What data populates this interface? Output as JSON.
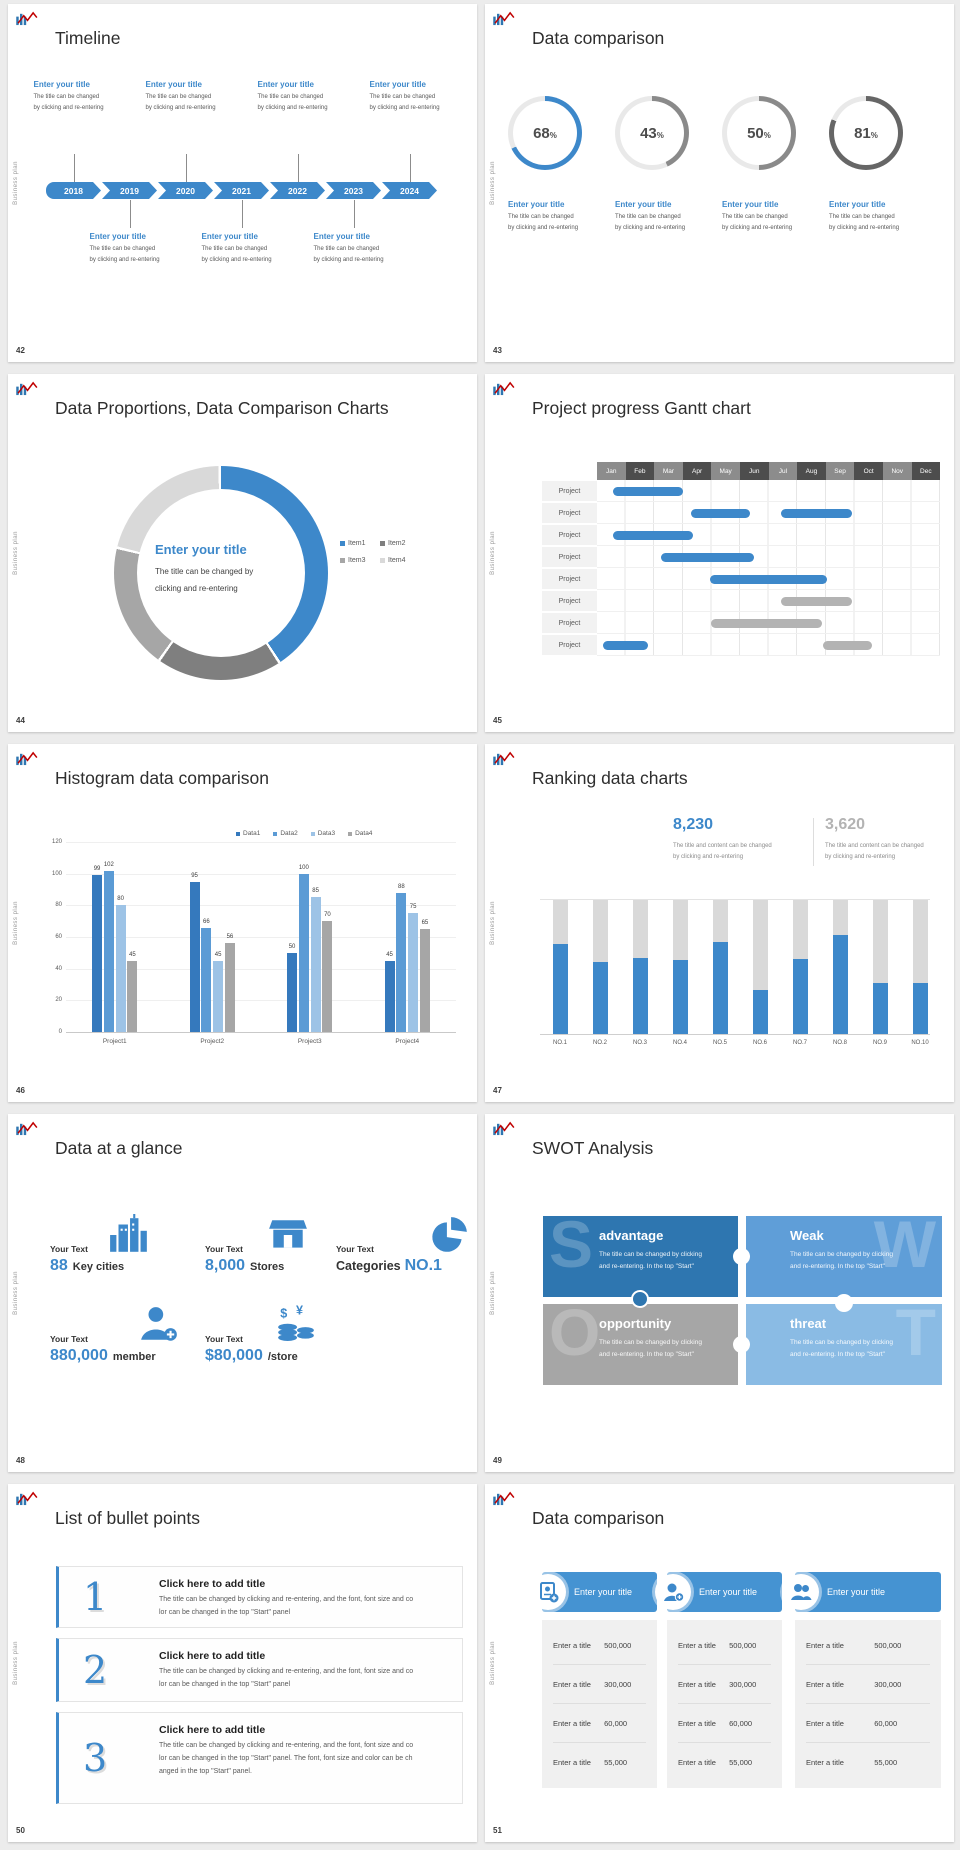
{
  "page": {
    "background": "#ececec",
    "accent": "#3d88ca"
  },
  "branding": {
    "vertical_label": "Business plan",
    "logo": "business-plan-logo"
  },
  "slides": {
    "timeline": {
      "page_number": "42",
      "title": "Timeline",
      "years": [
        "2018",
        "2019",
        "2020",
        "2021",
        "2022",
        "2023",
        "2024"
      ],
      "label": {
        "title": "Enter your title",
        "lines": [
          "The title can be changed",
          "by clicking and re-entering"
        ]
      },
      "top_slots": [
        0,
        2,
        4,
        6
      ],
      "bottom_slots": [
        1,
        3,
        5
      ]
    },
    "donut_comparison": {
      "page_number": "43",
      "title": "Data comparison",
      "label": {
        "title": "Enter your title",
        "lines": [
          "The title can be changed",
          "by clicking and re-entering"
        ]
      }
    },
    "proportions": {
      "page_number": "44",
      "title": "Data Proportions, Data Comparison Charts",
      "center": {
        "title": "Enter your title",
        "lines": [
          "The title can be changed by",
          "clicking and re-entering"
        ]
      }
    },
    "gantt": {
      "page_number": "45",
      "title": "Project progress Gantt chart"
    },
    "histogram": {
      "page_number": "46",
      "title": "Histogram data comparison"
    },
    "ranking": {
      "page_number": "47",
      "title": "Ranking data charts",
      "stats": [
        {
          "value": "8,230",
          "color": "#3d88ca",
          "lines": [
            "The title and content can be changed",
            "by clicking and re-entering"
          ]
        },
        {
          "value": "3,620",
          "color": "#b3b3b3",
          "lines": [
            "The title and content can be changed",
            "by clicking and re-entering"
          ]
        }
      ]
    },
    "glance": {
      "page_number": "48",
      "title": "Data at a glance",
      "items": [
        {
          "label": "Your Text",
          "value": "88",
          "suffix": "Key cities",
          "icon": "city-buildings-icon"
        },
        {
          "label": "Your Text",
          "value": "8,000",
          "suffix": "Stores",
          "icon": "store-icon"
        },
        {
          "label": "Your Text",
          "prefix": "Categories",
          "value": "NO.1",
          "icon": "pie-chart-icon"
        },
        {
          "label": "Your Text",
          "value": "880,000",
          "suffix": "member",
          "icon": "member-add-icon"
        },
        {
          "label": "Your Text",
          "value": "$80,000",
          "suffix": "/store",
          "icon": "coins-icon"
        }
      ]
    },
    "swot": {
      "page_number": "49",
      "title": "SWOT Analysis",
      "tiles": [
        {
          "letter": "S",
          "heading": "advantage",
          "color": "#2e76b0",
          "lines": [
            "The title can be changed by clicking",
            "and re-entering. In the top \"Start\""
          ]
        },
        {
          "letter": "W",
          "heading": "Weak",
          "color": "#5f9ed8",
          "lines": [
            "The title can be changed by clicking",
            "and re-entering. In the top \"Start\""
          ]
        },
        {
          "letter": "O",
          "heading": "opportunity",
          "color": "#a6a6a6",
          "lines": [
            "The title can be changed by clicking",
            "and re-entering. In the top \"Start\""
          ]
        },
        {
          "letter": "T",
          "heading": "threat",
          "color": "#8abbe4",
          "lines": [
            "The title can be changed by clicking",
            "and re-entering. In the top \"Start\""
          ]
        }
      ]
    },
    "bullets": {
      "page_number": "50",
      "title": "List of bullet points",
      "items": [
        {
          "number": "1",
          "heading": "Click here to add title",
          "lines": [
            "The title can be changed by clicking and re-entering, and the font, font size and co",
            "lor can be changed in the top \"Start\" panel"
          ]
        },
        {
          "number": "2",
          "heading": "Click here to add title",
          "lines": [
            "The title can be changed by clicking and re-entering, and the font, font size and co",
            "lor can be changed in the top \"Start\" panel"
          ]
        },
        {
          "number": "3",
          "heading": "Click here to add title",
          "lines": [
            "The title can be changed by clicking and re-entering, and the font, font size and co",
            "lor can be changed in the top \"Start\" panel. The font, font size and color can be ch",
            "anged in the top \"Start\" panel."
          ]
        }
      ]
    },
    "tables": {
      "page_number": "51",
      "title": "Data comparison",
      "cards": [
        {
          "icon": "id-card-plus-icon",
          "title": "Enter your title",
          "rows": [
            {
              "label": "Enter a title",
              "value": "500,000"
            },
            {
              "label": "Enter a title",
              "value": "300,000"
            },
            {
              "label": "Enter a title",
              "value": "60,000"
            },
            {
              "label": "Enter a title",
              "value": "55,000"
            }
          ]
        },
        {
          "icon": "person-plus-icon",
          "title": "Enter your title",
          "rows": [
            {
              "label": "Enter a title",
              "value": "500,000"
            },
            {
              "label": "Enter a title",
              "value": "300,000"
            },
            {
              "label": "Enter a title",
              "value": "60,000"
            },
            {
              "label": "Enter a title",
              "value": "55,000"
            }
          ]
        },
        {
          "icon": "people-icon",
          "title": "Enter your title",
          "rows": [
            {
              "label": "Enter a title",
              "value": "500,000"
            },
            {
              "label": "Enter a title",
              "value": "300,000"
            },
            {
              "label": "Enter a title",
              "value": "60,000"
            },
            {
              "label": "Enter a title",
              "value": "55,000"
            }
          ]
        }
      ]
    }
  },
  "chart_data": [
    {
      "name": "progress_rings",
      "type": "donut",
      "slide": "43",
      "track_color": "#e9e9e9",
      "values": [
        {
          "percent": 68,
          "color": "#3d88ca"
        },
        {
          "percent": 43,
          "color": "#8a8a8a"
        },
        {
          "percent": 50,
          "color": "#8a8a8a"
        },
        {
          "percent": 81,
          "color": "#666666"
        }
      ]
    },
    {
      "name": "proportion_donut",
      "type": "pie",
      "slide": "44",
      "labels": [
        "Item1",
        "Item2",
        "Item3",
        "Item4"
      ],
      "values": [
        41,
        19,
        19,
        21
      ],
      "colors": [
        "#3d88ca",
        "#7f7f7f",
        "#a6a6a6",
        "#d9d9d9"
      ],
      "legend_position": "right"
    },
    {
      "name": "gantt",
      "type": "gantt",
      "slide": "45",
      "months": [
        "Jan",
        "Feb",
        "Mar",
        "Apr",
        "May",
        "Jun",
        "Jul",
        "Aug",
        "Sep",
        "Oct",
        "Nov",
        "Dec"
      ],
      "row_label": "Project",
      "bar_colors": {
        "blue": "#3d88ca",
        "gray": "#b3b3b3"
      },
      "rows": [
        [
          {
            "start": 0.55,
            "end": 3.0,
            "color": "blue"
          }
        ],
        [
          {
            "start": 3.3,
            "end": 5.35,
            "color": "blue"
          },
          {
            "start": 6.45,
            "end": 8.9,
            "color": "blue"
          }
        ],
        [
          {
            "start": 0.55,
            "end": 3.35,
            "color": "blue"
          }
        ],
        [
          {
            "start": 2.25,
            "end": 5.5,
            "color": "blue"
          }
        ],
        [
          {
            "start": 3.95,
            "end": 8.05,
            "color": "blue"
          }
        ],
        [
          {
            "start": 6.45,
            "end": 8.9,
            "color": "gray"
          }
        ],
        [
          {
            "start": 4.0,
            "end": 7.85,
            "color": "gray"
          }
        ],
        [
          {
            "start": 0.2,
            "end": 1.8,
            "color": "blue"
          },
          {
            "start": 7.9,
            "end": 9.6,
            "color": "gray"
          }
        ]
      ]
    },
    {
      "name": "histogram",
      "type": "bar",
      "slide": "46",
      "categories": [
        "Project1",
        "Project2",
        "Project3",
        "Project4"
      ],
      "series": [
        {
          "name": "Data1",
          "color": "#3579bd",
          "values": [
            99,
            95,
            50,
            45
          ]
        },
        {
          "name": "Data2",
          "color": "#5b9bd5",
          "values": [
            102,
            66,
            100,
            88
          ]
        },
        {
          "name": "Data3",
          "color": "#9dc3e6",
          "values": [
            80,
            45,
            85,
            75
          ]
        },
        {
          "name": "Data4",
          "color": "#a6a6a6",
          "values": [
            45,
            56,
            70,
            65
          ]
        }
      ],
      "ylim": [
        0,
        120
      ],
      "ytick_step": 20,
      "grid": true,
      "legend_position": "top-right"
    },
    {
      "name": "ranking",
      "type": "bar",
      "slide": "47",
      "categories": [
        "NO.1",
        "NO.2",
        "NO.3",
        "NO.4",
        "NO.5",
        "NO.6",
        "NO.7",
        "NO.8",
        "NO.9",
        "NO.10"
      ],
      "fill_fractions": [
        0.67,
        0.54,
        0.57,
        0.55,
        0.69,
        0.33,
        0.56,
        0.74,
        0.38,
        0.38
      ],
      "bar_color": "#3d88ca",
      "track_color": "#d9d9d9"
    }
  ]
}
